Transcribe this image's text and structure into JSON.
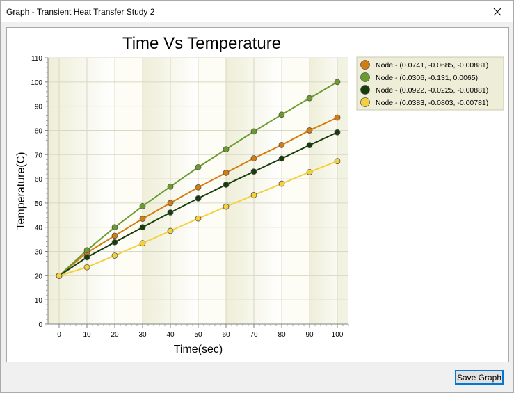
{
  "window": {
    "title": "Graph - Transient Heat Transfer Study 2"
  },
  "buttons": {
    "save_label": "Save Graph"
  },
  "icons": {
    "close": "close-icon"
  },
  "chart_data": {
    "type": "line",
    "title": "Time Vs Temperature",
    "xlabel": "Time(sec)",
    "ylabel": "Temperature(C)",
    "xlim": [
      -4,
      104
    ],
    "ylim": [
      0,
      110
    ],
    "xticks": [
      0,
      10,
      20,
      30,
      40,
      50,
      60,
      70,
      80,
      90,
      100
    ],
    "yticks": [
      0,
      10,
      20,
      30,
      40,
      50,
      60,
      70,
      80,
      90,
      100,
      110
    ],
    "grid": true,
    "legend_position": "right",
    "x": [
      0,
      10,
      20,
      30,
      40,
      50,
      60,
      70,
      80,
      90,
      100
    ],
    "series": [
      {
        "name": "Node - (0.0741, -0.0685, -0.00881)",
        "color": "#d47d0f",
        "values": [
          20,
          29.5,
          36.5,
          43.5,
          50,
          56.5,
          62.5,
          68.5,
          74,
          80,
          85.3
        ]
      },
      {
        "name": "Node - (0.0306, -0.131, 0.0065)",
        "color": "#6b9a2e",
        "values": [
          20,
          30.5,
          40,
          48.7,
          56.8,
          64.8,
          72.2,
          79.6,
          86.5,
          93.3,
          100
        ]
      },
      {
        "name": "Node - (0.0922, -0.0225, -0.00881)",
        "color": "#173d0c",
        "values": [
          20,
          27.6,
          33.8,
          40,
          46.1,
          51.9,
          57.6,
          63,
          68.4,
          73.9,
          79.2
        ]
      },
      {
        "name": "Node - (0.0383, -0.0803, -0.00781)",
        "color": "#f3d13c",
        "values": [
          20,
          23.5,
          28.3,
          33.4,
          38.5,
          43.6,
          48.5,
          53.3,
          58,
          62.8,
          67.3
        ]
      }
    ]
  }
}
